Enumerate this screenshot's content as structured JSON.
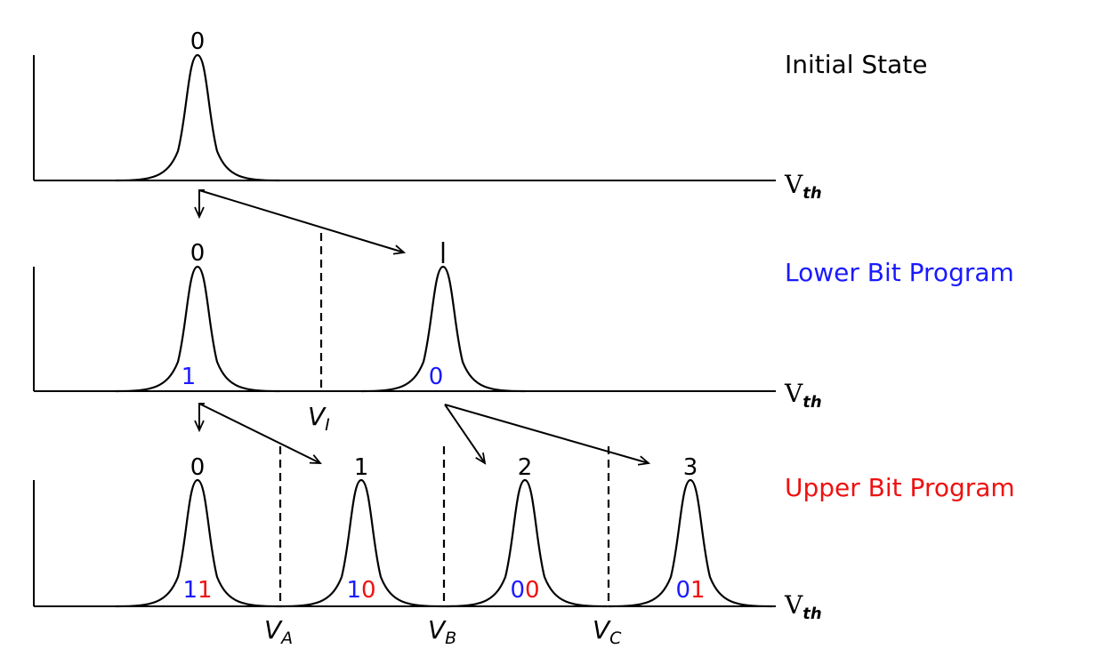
{
  "colors": {
    "black": "#000000",
    "blue": "#1a1aff",
    "red": "#ee1111"
  },
  "rows": [
    {
      "title": "Initial State",
      "title_color": "#000000",
      "axis_label": {
        "main": "V",
        "sub": "th"
      },
      "states": [
        {
          "top": "0",
          "bits": []
        }
      ],
      "thresholds": []
    },
    {
      "title": "Lower Bit Program",
      "title_color": "#1a1aff",
      "axis_label": {
        "main": "V",
        "sub": "th"
      },
      "states": [
        {
          "top": "0",
          "bits": [
            {
              "text": "1",
              "color": "#1a1aff"
            }
          ]
        },
        {
          "top": "",
          "bits": [
            {
              "text": "0",
              "color": "#1a1aff"
            }
          ]
        }
      ],
      "thresholds": [
        {
          "main": "V",
          "sub": "I"
        }
      ]
    },
    {
      "title": "Upper Bit Program",
      "title_color": "#ee1111",
      "axis_label": {
        "main": "V",
        "sub": "th"
      },
      "states": [
        {
          "top": "0",
          "bits": [
            {
              "text": "1",
              "color": "#1a1aff"
            },
            {
              "text": "1",
              "color": "#ee1111"
            }
          ]
        },
        {
          "top": "1",
          "bits": [
            {
              "text": "1",
              "color": "#1a1aff"
            },
            {
              "text": "0",
              "color": "#ee1111"
            }
          ]
        },
        {
          "top": "2",
          "bits": [
            {
              "text": "0",
              "color": "#1a1aff"
            },
            {
              "text": "0",
              "color": "#ee1111"
            }
          ]
        },
        {
          "top": "3",
          "bits": [
            {
              "text": "0",
              "color": "#1a1aff"
            },
            {
              "text": "1",
              "color": "#ee1111"
            }
          ]
        }
      ],
      "thresholds": [
        {
          "main": "V",
          "sub": "A"
        },
        {
          "main": "V",
          "sub": "B"
        },
        {
          "main": "V",
          "sub": "C"
        }
      ]
    }
  ]
}
